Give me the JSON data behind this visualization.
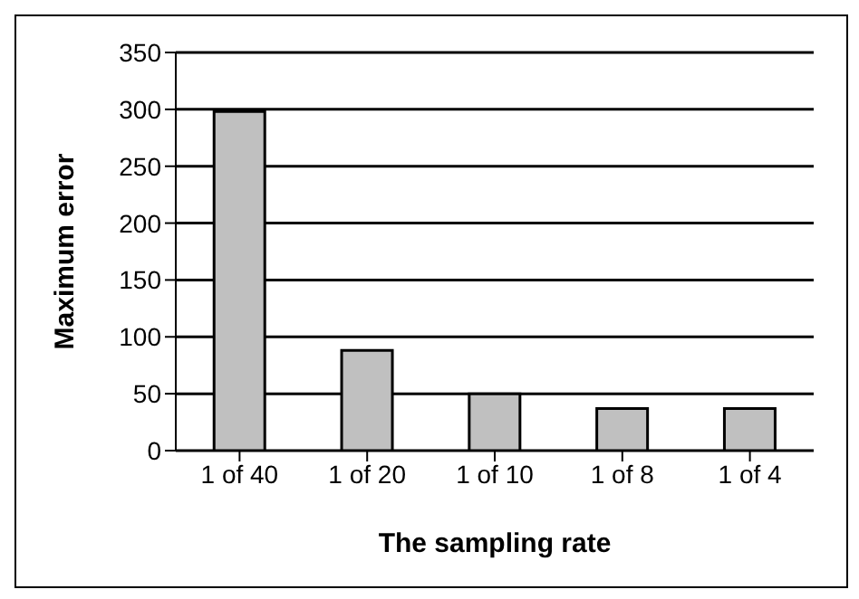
{
  "chart_data": {
    "type": "bar",
    "xlabel": "The sampling rate",
    "ylabel": "Maximum error",
    "categories": [
      "1 of 40",
      "1 of 20",
      "1 of 10",
      "1 of  8",
      "1 of 4"
    ],
    "values": [
      298,
      88,
      50,
      37,
      37
    ],
    "color": "#c0c0c0",
    "ylim": [
      0,
      350
    ],
    "yticks": [
      0,
      50,
      100,
      150,
      200,
      250,
      300,
      350
    ],
    "grid": "y"
  }
}
